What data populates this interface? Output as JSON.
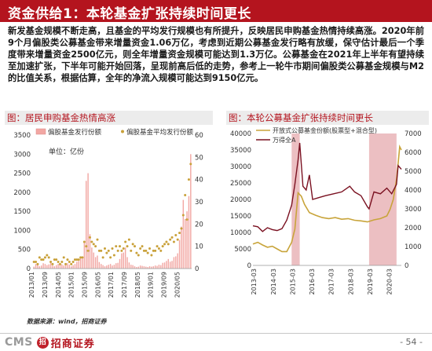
{
  "header": {
    "title": "资金供给1：本轮基金扩张持续时间更长"
  },
  "description": "新发基金规模不断走高，且基金的平均发行规模也有所提升，反映居民申购基金热情持续高涨。2020年前9个月偏股类公募基金带来增量资金1.06万亿，考虑到近期公募基金发行略有放缓，保守估计最后一个季度带来增量资金2500亿元，则全年增量资金规模可能达到1.3万亿。公募基金在2021年上半年有望持续至加速扩张，下半年可能开始回落，呈现前高后低的走势，参考上一轮牛市期间偏股类公募基金规模与M2的比值关系，根据估算，全年的净流入规模可能达到9150亿元。",
  "left_panel": {
    "title": "图：居民申购基金热情高涨",
    "unit_label": "单位：亿份"
  },
  "right_panel": {
    "title": "图：本轮公募基金扩张持续时间更长"
  },
  "source": "数据来源：wind，招商证券",
  "footer": {
    "logo_cms": "CMS",
    "logo_mark": "招",
    "logo_cn": "招商证券",
    "page_number": "- 54 -"
  },
  "colors": {
    "brand_red": "#b4141e",
    "bar_pink": "#f2a7a3",
    "dot_gold": "#c9a13a",
    "line_gold": "#c8a43a",
    "line_maroon": "#7a1020",
    "shade": "#e9b4b7"
  },
  "chart_data": [
    {
      "type": "bar",
      "title": "居民申购基金热情高涨",
      "legend": {
        "placement": "top-left",
        "entries": [
          "偏股基金发行份额",
          "偏股基金平均发行份额"
        ]
      },
      "x_tick_labels": [
        "2013/01",
        "2013/09",
        "2014/05",
        "2015/01",
        "2015/09",
        "2016/05",
        "2017/01",
        "2017/09",
        "2018/05",
        "2019/01",
        "2019/09",
        "2020/05"
      ],
      "y_left": {
        "min": 0,
        "max": 3500,
        "ticks": [
          0,
          500,
          1000,
          1500,
          2000,
          2500,
          3000,
          3500
        ]
      },
      "y_right": {
        "min": 0,
        "max": 60,
        "ticks": [
          0,
          10,
          20,
          30,
          40,
          50,
          60
        ]
      },
      "series": [
        {
          "name": "偏股基金发行份额",
          "kind": "bar",
          "axis": "left",
          "values": [
            50,
            120,
            100,
            60,
            80,
            140,
            120,
            90,
            110,
            150,
            80,
            60,
            90,
            120,
            100,
            110,
            80,
            100,
            140,
            100,
            60,
            90,
            120,
            180,
            200,
            300,
            260,
            700,
            2300,
            2500,
            900,
            550,
            420,
            300,
            340,
            170,
            120,
            90,
            60,
            80,
            100,
            120,
            80,
            100,
            140,
            150,
            250,
            400,
            420,
            550,
            300,
            160,
            100,
            90,
            60,
            40,
            50,
            80,
            70,
            60,
            50,
            40,
            60,
            50,
            60,
            80,
            70,
            100,
            90,
            150,
            160,
            200,
            250,
            180,
            200,
            300,
            320,
            400,
            750,
            1100,
            1800,
            1300,
            1500,
            1900,
            3000
          ]
        },
        {
          "name": "偏股基金平均发行份额",
          "kind": "dots",
          "axis": "right",
          "values": [
            3,
            3,
            2,
            5,
            4,
            4,
            5,
            6,
            5,
            3,
            2,
            4,
            4,
            3,
            2,
            3,
            5,
            2,
            4,
            3,
            2,
            3,
            4,
            4,
            4,
            5,
            5,
            12,
            10,
            8,
            14,
            12,
            11,
            10,
            13,
            8,
            8,
            5,
            9,
            7,
            8,
            5,
            9,
            6,
            10,
            8,
            10,
            8,
            9,
            12,
            10,
            13,
            8,
            11,
            10,
            7,
            6,
            9,
            10,
            8,
            8,
            7,
            9,
            6,
            8,
            8,
            10,
            9,
            8,
            10,
            11,
            12,
            11,
            13,
            14,
            12,
            15,
            13,
            16,
            18,
            24,
            33,
            22,
            40,
            47
          ]
        }
      ]
    },
    {
      "type": "line",
      "title": "本轮公募基金扩张持续时间更长",
      "legend": {
        "placement": "top-left",
        "entries": [
          "开放式公募基金份额(股票型+混合型)",
          "万得全A"
        ]
      },
      "x_tick_labels": [
        "2013-03",
        "2014-03",
        "2015-03",
        "2016-03",
        "2017-03",
        "2018-03",
        "2019-03",
        "2020-03"
      ],
      "y_left": {
        "min": 0,
        "max": 40000,
        "ticks": [
          0,
          5000,
          10000,
          15000,
          20000,
          25000,
          30000,
          35000,
          40000
        ]
      },
      "y_right": {
        "min": 0,
        "max": 7000,
        "ticks": [
          0,
          1000,
          2000,
          3000,
          4000,
          5000,
          6000,
          7000
        ]
      },
      "shaded_periods": [
        {
          "start": "2015-01",
          "end": "2015-06"
        },
        {
          "start": "2019-01",
          "end": "2020-06"
        }
      ],
      "series": [
        {
          "name": "开放式公募基金份额(股票型+混合型)",
          "axis": "left",
          "x": [
            "2013-01",
            "2013-04",
            "2013-07",
            "2013-10",
            "2014-01",
            "2014-04",
            "2014-07",
            "2014-10",
            "2015-01",
            "2015-03",
            "2015-05",
            "2015-07",
            "2015-09",
            "2015-12",
            "2016-04",
            "2016-08",
            "2016-12",
            "2017-04",
            "2017-08",
            "2017-12",
            "2018-04",
            "2018-08",
            "2018-12",
            "2019-04",
            "2019-08",
            "2019-12",
            "2020-02",
            "2020-04",
            "2020-06",
            "2020-07",
            "2020-08",
            "2020-09"
          ],
          "values": [
            6500,
            7000,
            6200,
            5500,
            5800,
            5000,
            4200,
            4200,
            7000,
            11000,
            22000,
            21000,
            18500,
            16000,
            15200,
            14500,
            14200,
            14500,
            14000,
            14200,
            13700,
            13500,
            13200,
            13800,
            14200,
            15000,
            17000,
            20000,
            26000,
            31000,
            36000,
            35000
          ]
        },
        {
          "name": "万得全A",
          "axis": "right",
          "x": [
            "2013-01",
            "2013-04",
            "2013-07",
            "2013-10",
            "2014-01",
            "2014-04",
            "2014-07",
            "2014-10",
            "2015-01",
            "2015-03",
            "2015-05",
            "2015-06",
            "2015-08",
            "2015-10",
            "2015-12",
            "2016-02",
            "2016-06",
            "2016-10",
            "2017-03",
            "2017-08",
            "2018-01",
            "2018-04",
            "2018-08",
            "2018-12",
            "2019-01",
            "2019-04",
            "2019-08",
            "2019-12",
            "2020-03",
            "2020-06",
            "2020-07",
            "2020-09"
          ],
          "values": [
            2100,
            2050,
            1800,
            2000,
            1900,
            1850,
            1950,
            2400,
            3200,
            4300,
            5600,
            6500,
            4200,
            4000,
            4800,
            3500,
            3600,
            3700,
            3800,
            3900,
            4200,
            3900,
            3700,
            3100,
            3000,
            3900,
            3800,
            4100,
            3800,
            4300,
            5300,
            5100
          ]
        }
      ]
    }
  ]
}
